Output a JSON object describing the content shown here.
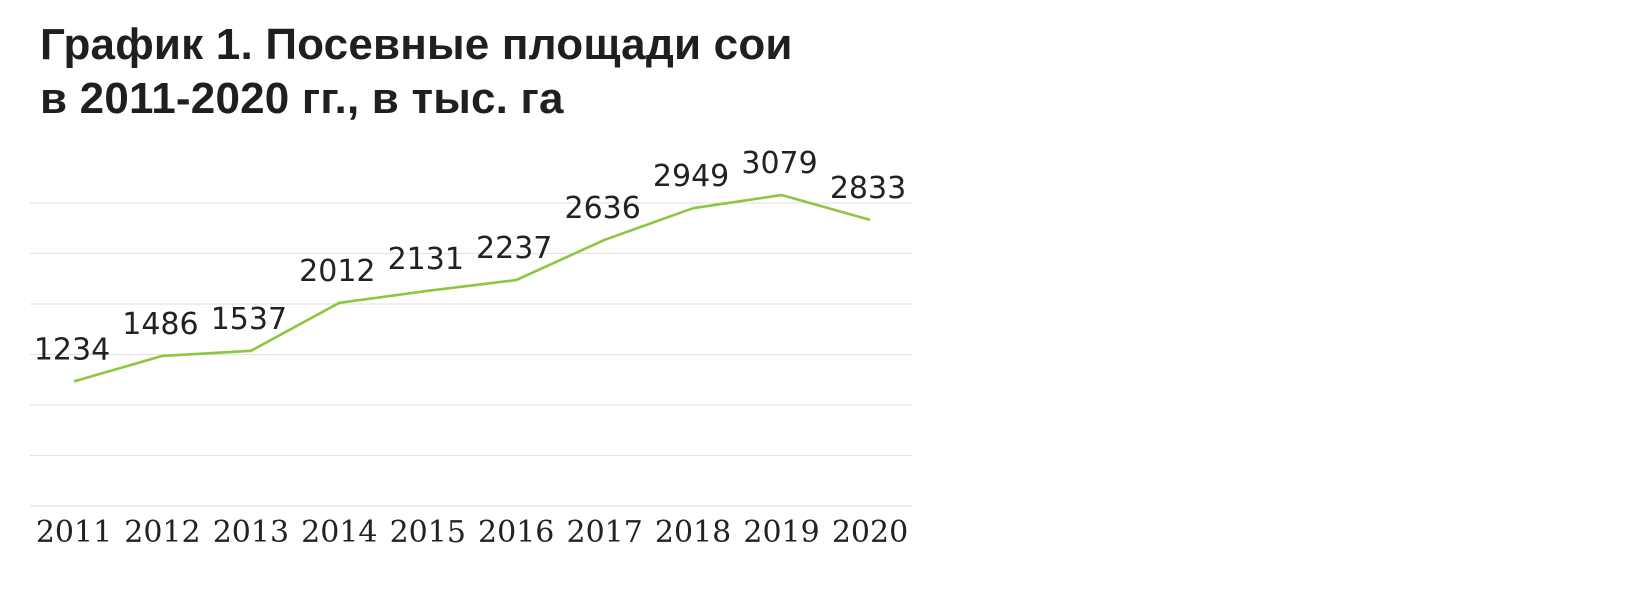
{
  "title": {
    "line1": "График 1. Посевные площади сои",
    "line2": "в 2011-2020 гг., в тыс. га"
  },
  "colors": {
    "line": "#8dc63f",
    "grid": "#e4e4e4",
    "text": "#222222"
  },
  "chart_data": {
    "type": "line",
    "title": "График 1. Посевные площади сои в 2011-2020 гг., в тыс. га",
    "xlabel": "",
    "ylabel": "",
    "categories": [
      "2011",
      "2012",
      "2013",
      "2014",
      "2015",
      "2016",
      "2017",
      "2018",
      "2019",
      "2020"
    ],
    "series": [
      {
        "values": [
          1234,
          1486,
          1537,
          2012,
          2131,
          2237,
          2636,
          2949,
          3079,
          2833
        ]
      }
    ],
    "data_labels": [
      "1234",
      "1486",
      "1537",
      "2012",
      "2131",
      "2237",
      "2636",
      "2949",
      "3079",
      "2833"
    ],
    "ylim": [
      0,
      3500
    ],
    "grid": true,
    "legend": "none"
  }
}
